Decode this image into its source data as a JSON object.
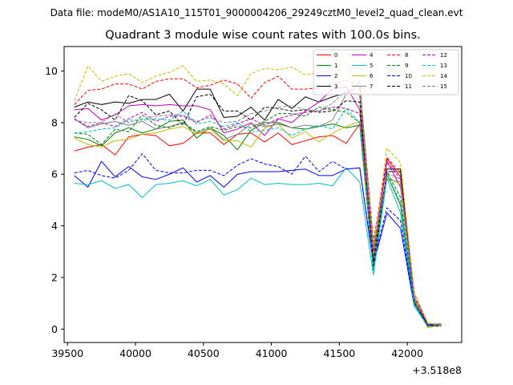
{
  "header": {
    "data_file": "Data file: modeM0/AS1A10_115T01_9000004206_29249cztM0_level2_quad_clean.evt"
  },
  "chart_data": {
    "type": "line",
    "title": "Quadrant 3 module wise count rates with 100.0s bins.",
    "xlabel": "",
    "ylabel": "",
    "x_offset_label": "+3.518e8",
    "xlim": [
      39475,
      42400
    ],
    "ylim": [
      -0.52,
      10.95
    ],
    "x_ticks": [
      39500,
      40000,
      40500,
      41000,
      41500,
      42000
    ],
    "x_tick_labels": [
      "39500",
      "40000",
      "40500",
      "41000",
      "41500",
      "42000"
    ],
    "y_ticks": [
      0,
      2,
      4,
      6,
      8,
      10
    ],
    "y_tick_labels": [
      "0",
      "2",
      "4",
      "6",
      "8",
      "10"
    ],
    "legend_position": "top-right",
    "x": [
      39550,
      39650,
      39750,
      39850,
      39950,
      40050,
      40150,
      40250,
      40350,
      40450,
      40550,
      40650,
      40750,
      40850,
      40950,
      41050,
      41150,
      41250,
      41350,
      41450,
      41550,
      41650,
      41750,
      41850,
      41950,
      42050,
      42150,
      42250
    ],
    "series": [
      {
        "name": "0",
        "color": "#ff0000",
        "dash": false,
        "values": [
          6.9,
          7.05,
          7.15,
          6.75,
          7.45,
          7.55,
          7.5,
          7.1,
          7.2,
          7.6,
          7.6,
          7.15,
          7.55,
          7.6,
          7.25,
          7.6,
          7.15,
          7.3,
          7.45,
          7.5,
          7.2,
          7.95,
          2.7,
          6.6,
          5.9,
          1.0,
          0.2,
          0.15
        ]
      },
      {
        "name": "1",
        "color": "#008000",
        "dash": false,
        "values": [
          7.45,
          7.35,
          7.1,
          7.6,
          7.8,
          7.6,
          7.75,
          8.05,
          8.1,
          7.4,
          7.8,
          7.5,
          6.95,
          7.7,
          8.0,
          8.0,
          7.8,
          7.75,
          7.85,
          7.95,
          7.8,
          7.9,
          2.3,
          6.0,
          4.8,
          1.0,
          0.15,
          0.15
        ]
      },
      {
        "name": "2",
        "color": "#0000ff",
        "dash": false,
        "values": [
          5.95,
          5.5,
          6.5,
          5.9,
          6.3,
          5.9,
          5.8,
          6.0,
          6.25,
          5.7,
          5.95,
          5.5,
          6.0,
          6.1,
          6.1,
          6.1,
          6.15,
          6.2,
          5.95,
          5.95,
          6.2,
          6.25,
          2.5,
          4.5,
          3.9,
          0.9,
          0.15,
          0.15
        ]
      },
      {
        "name": "3",
        "color": "#000000",
        "dash": false,
        "values": [
          8.6,
          8.8,
          8.7,
          8.8,
          8.75,
          8.9,
          8.9,
          9.1,
          8.45,
          9.3,
          9.3,
          8.2,
          8.25,
          8.6,
          8.1,
          8.9,
          8.55,
          9.0,
          8.8,
          9.0,
          9.15,
          9.1,
          2.3,
          6.2,
          6.2,
          1.1,
          0.15,
          0.2
        ]
      },
      {
        "name": "4",
        "color": "#bf00bf",
        "dash": false,
        "values": [
          8.5,
          8.55,
          8.1,
          8.3,
          8.65,
          8.7,
          8.65,
          8.7,
          8.65,
          8.65,
          8.5,
          7.6,
          7.75,
          8.0,
          7.5,
          8.15,
          8.0,
          8.45,
          8.8,
          9.3,
          9.4,
          8.5,
          3.0,
          6.5,
          5.5,
          1.2,
          0.2,
          0.15
        ]
      },
      {
        "name": "5",
        "color": "#00bfbf",
        "dash": false,
        "values": [
          5.65,
          5.6,
          5.75,
          5.45,
          5.6,
          5.1,
          5.6,
          5.65,
          5.75,
          5.55,
          5.8,
          5.2,
          5.4,
          5.85,
          5.6,
          5.65,
          5.6,
          5.6,
          5.65,
          5.55,
          6.25,
          5.7,
          2.1,
          5.85,
          4.5,
          0.9,
          0.1,
          0.15
        ]
      },
      {
        "name": "6",
        "color": "#bfbf00",
        "dash": false,
        "values": [
          7.4,
          7.15,
          7.05,
          7.3,
          7.35,
          7.55,
          7.6,
          7.75,
          7.85,
          7.55,
          7.75,
          7.3,
          7.3,
          7.05,
          7.8,
          7.95,
          7.4,
          7.65,
          7.25,
          7.6,
          7.85,
          8.05,
          2.8,
          5.9,
          5.6,
          1.15,
          0.05,
          0.15
        ]
      },
      {
        "name": "7",
        "color": "#808080",
        "dash": false,
        "values": [
          8.15,
          7.8,
          7.95,
          8.05,
          7.9,
          8.05,
          7.75,
          7.85,
          8.0,
          7.6,
          7.8,
          7.35,
          7.55,
          7.95,
          7.85,
          7.95,
          7.8,
          7.9,
          7.85,
          8.1,
          9.1,
          9.6,
          3.2,
          5.8,
          5.7,
          1.25,
          0.2,
          0.2
        ]
      },
      {
        "name": "8",
        "color": "#ff0000",
        "dash": true,
        "values": [
          8.7,
          9.25,
          9.3,
          9.5,
          9.5,
          9.3,
          9.6,
          9.7,
          9.7,
          9.35,
          9.45,
          9.65,
          9.5,
          8.95,
          9.55,
          9.8,
          9.3,
          9.3,
          9.35,
          9.5,
          9.65,
          9.4,
          3.4,
          6.65,
          6.05,
          1.4,
          0.2,
          0.1
        ]
      },
      {
        "name": "9",
        "color": "#008000",
        "dash": true,
        "values": [
          7.6,
          7.55,
          7.15,
          7.75,
          7.65,
          8.3,
          7.9,
          7.8,
          8.0,
          7.65,
          7.85,
          7.7,
          7.85,
          7.8,
          8.05,
          8.35,
          8.35,
          8.25,
          8.6,
          8.5,
          8.4,
          8.0,
          2.5,
          6.1,
          5.1,
          1.05,
          0.1,
          0.2
        ]
      },
      {
        "name": "10",
        "color": "#0000ff",
        "dash": true,
        "values": [
          6.05,
          6.15,
          5.95,
          5.85,
          6.15,
          6.8,
          6.15,
          6.05,
          6.05,
          6.15,
          6.15,
          5.95,
          6.35,
          6.6,
          6.4,
          6.3,
          6.0,
          6.7,
          6.1,
          6.5,
          6.2,
          6.25,
          2.6,
          4.7,
          4.2,
          1.0,
          0.15,
          0.15
        ]
      },
      {
        "name": "11",
        "color": "#000000",
        "dash": true,
        "values": [
          8.2,
          8.75,
          8.5,
          8.1,
          9.05,
          8.85,
          8.3,
          8.45,
          7.9,
          9.0,
          9.1,
          8.45,
          8.45,
          8.1,
          8.6,
          8.55,
          8.45,
          8.5,
          8.4,
          8.45,
          8.85,
          8.8,
          2.6,
          6.1,
          6.1,
          1.05,
          0.15,
          0.1
        ]
      },
      {
        "name": "12",
        "color": "#bf00bf",
        "dash": true,
        "values": [
          8.15,
          7.85,
          8.0,
          7.85,
          8.15,
          8.4,
          8.05,
          8.25,
          8.25,
          8.0,
          8.3,
          7.75,
          7.95,
          8.15,
          7.9,
          8.15,
          8.3,
          8.4,
          8.45,
          8.6,
          8.55,
          8.35,
          2.9,
          6.5,
          5.8,
          1.25,
          0.2,
          0.15
        ]
      },
      {
        "name": "13",
        "color": "#00bfbf",
        "dash": true,
        "values": [
          7.6,
          7.65,
          7.75,
          7.8,
          8.1,
          8.1,
          8.15,
          8.1,
          8.45,
          7.95,
          8.05,
          7.85,
          8.0,
          7.65,
          7.7,
          7.8,
          7.5,
          7.75,
          7.9,
          7.75,
          8.55,
          8.0,
          2.3,
          6.0,
          4.9,
          1.0,
          0.1,
          0.15
        ]
      },
      {
        "name": "14",
        "color": "#bfbf00",
        "dash": true,
        "values": [
          8.85,
          10.2,
          9.6,
          9.8,
          9.9,
          9.55,
          9.8,
          9.95,
          10.2,
          9.6,
          9.65,
          9.5,
          9.05,
          9.9,
          10.1,
          10.05,
          10.15,
          9.85,
          9.95,
          10.05,
          10.4,
          9.1,
          3.2,
          7.0,
          6.45,
          1.4,
          0.25,
          0.1
        ]
      },
      {
        "name": "15",
        "color": "#808080",
        "dash": true,
        "values": [
          8.1,
          8.0,
          8.0,
          8.35,
          8.0,
          8.15,
          8.25,
          8.3,
          8.3,
          8.05,
          8.2,
          8.0,
          8.05,
          8.35,
          8.45,
          8.6,
          8.65,
          8.5,
          8.45,
          8.75,
          9.25,
          9.3,
          3.1,
          6.05,
          5.8,
          1.2,
          0.2,
          0.2
        ]
      }
    ]
  }
}
